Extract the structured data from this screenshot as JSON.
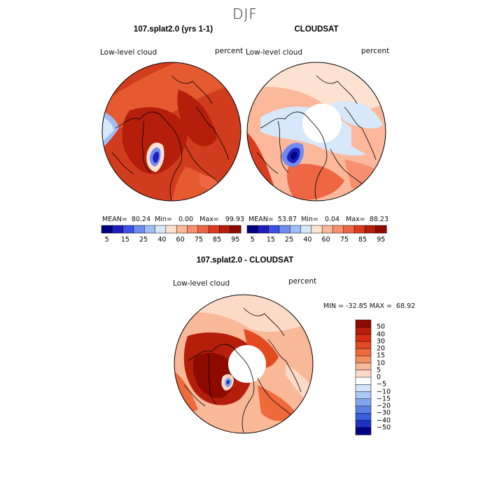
{
  "season": "DJF",
  "panels": [
    {
      "title": "107.splat2.0 (yrs 1-1)",
      "variable": "Low-level cloud",
      "units": "percent",
      "stats": {
        "mean_label": "MEAN=",
        "mean": "80.24",
        "min_label": "Min=",
        "min": "0.00",
        "max_label": "Max=",
        "max": "99.93"
      }
    },
    {
      "title": "CLOUDSAT",
      "variable": "Low-level cloud",
      "units": "percent",
      "stats": {
        "mean_label": "MEAN=",
        "mean": "53.87",
        "min_label": "Min=",
        "min": "0.04",
        "max_label": "Max=",
        "max": "88.23"
      }
    }
  ],
  "colorbar_top": {
    "colors": [
      "#00007f",
      "#1e1ebf",
      "#3c50e6",
      "#6e8cf0",
      "#a0bef5",
      "#d7e8fa",
      "#fde2d2",
      "#fbb89a",
      "#f7906e",
      "#ee6643",
      "#dc3c1e",
      "#b41e0a",
      "#8c0a00"
    ],
    "labels": [
      "5",
      "15",
      "25",
      "40",
      "60",
      "75",
      "85",
      "95"
    ]
  },
  "difference": {
    "title": "107.splat2.0 - CLOUDSAT",
    "variable": "Low-level cloud",
    "units": "percent",
    "minmax_text": "MIN = -32.85 MAX =  68.92",
    "colors": [
      "#8c0a00",
      "#b41e0a",
      "#d22e10",
      "#e24a20",
      "#ee6a3a",
      "#f48f62",
      "#f9b898",
      "#fcdac8",
      "#ffffff",
      "#d2e4fa",
      "#aac8f4",
      "#82a6ee",
      "#5a82e6",
      "#3a5edc",
      "#1e32c8",
      "#000080"
    ],
    "labels": [
      "50",
      "40",
      "30",
      "20",
      "15",
      "10",
      "5",
      "0",
      "−5",
      "−10",
      "−15",
      "−20",
      "−30",
      "−40",
      "−50"
    ]
  },
  "map_icons": [
    "polar-stereographic-map",
    "coastline"
  ]
}
